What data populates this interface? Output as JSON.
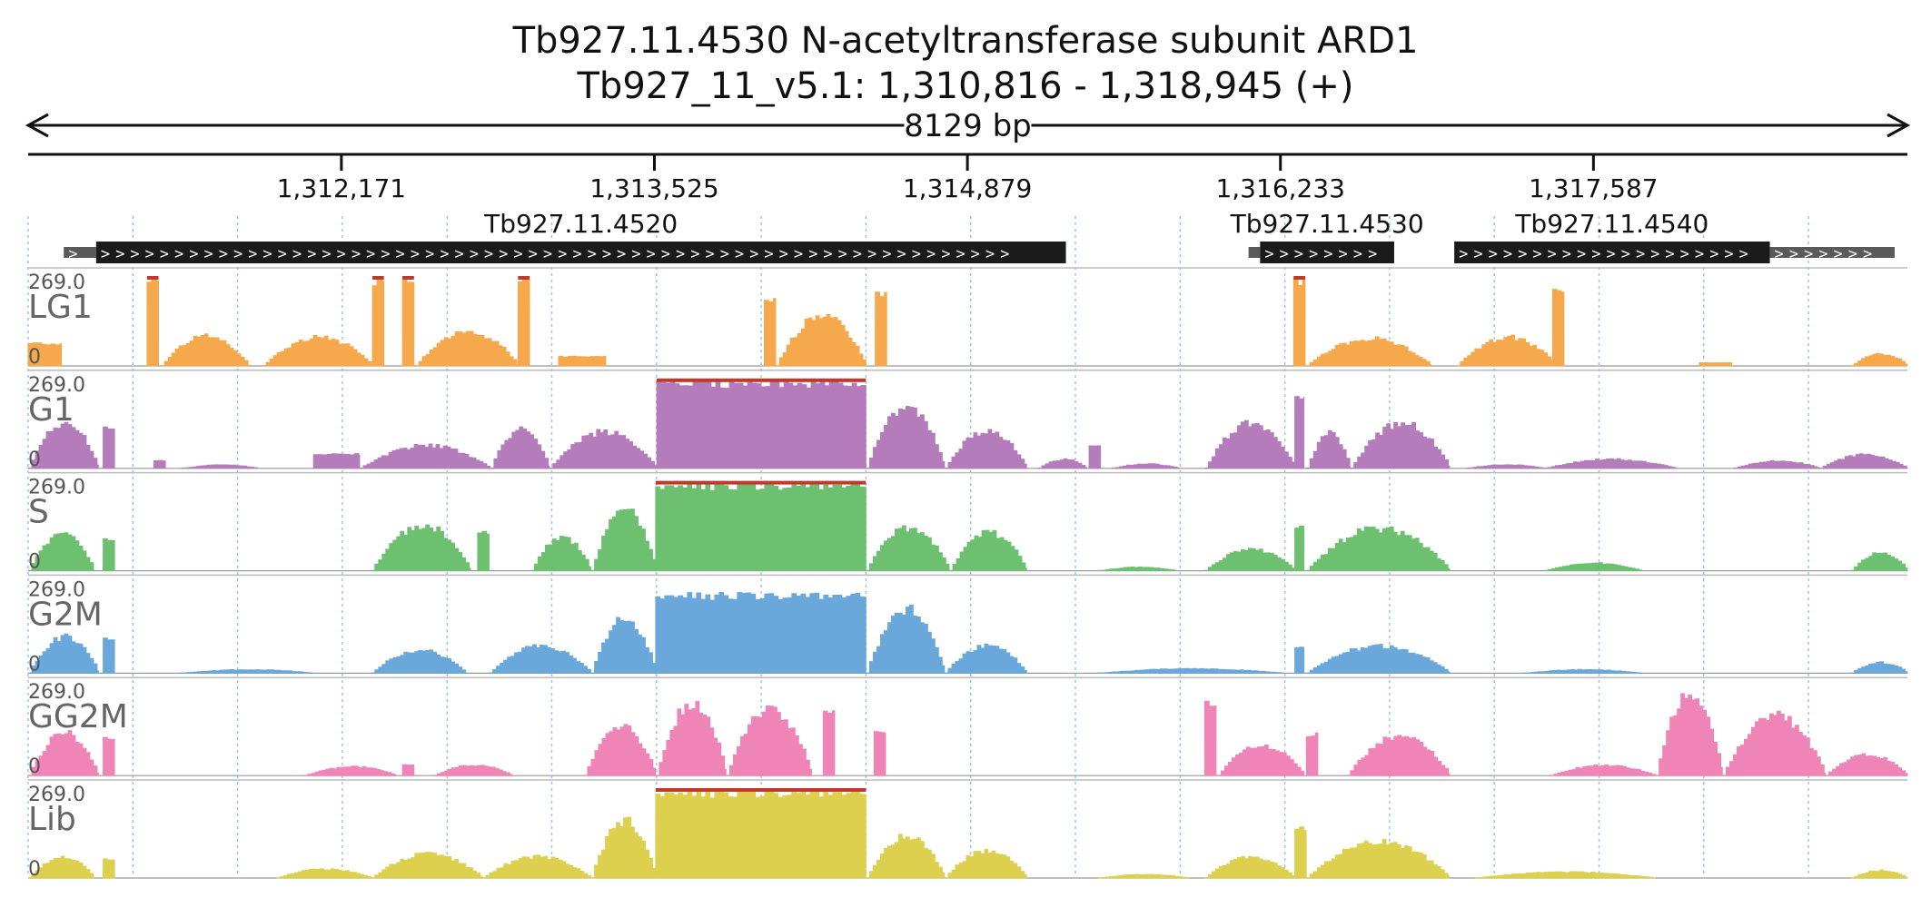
{
  "header": {
    "title_line1": "Tb927.11.4530  N-acetyltransferase subunit ARD1",
    "title_line2": "Tb927_11_v5.1: 1,310,816 - 1,318,945 (+)"
  },
  "region": {
    "chromosome": "Tb927_11_v5.1",
    "start": 1310816,
    "end": 1318945,
    "strand": "+",
    "length_label": "8129 bp",
    "ticks": [
      {
        "pos": 1312171,
        "label": "1,312,171"
      },
      {
        "pos": 1313525,
        "label": "1,313,525"
      },
      {
        "pos": 1314879,
        "label": "1,314,879"
      },
      {
        "pos": 1316233,
        "label": "1,316,233"
      },
      {
        "pos": 1317587,
        "label": "1,317,587"
      }
    ]
  },
  "genes": [
    {
      "name": "Tb927.11.4520",
      "utr5": [
        1310970,
        1311110
      ],
      "cds": [
        1311110,
        1315305
      ],
      "utr3": null
    },
    {
      "name": "Tb927.11.4530",
      "utr5": [
        1316095,
        1316145
      ],
      "cds": [
        1316145,
        1316725
      ],
      "utr3": null
    },
    {
      "name": "Tb927.11.4540",
      "utr5": null,
      "cds": [
        1316985,
        1318350
      ],
      "utr3": [
        1318350,
        1318890
      ]
    }
  ],
  "colors": {
    "LG1": "#f5a84c",
    "G1": "#b47cba",
    "S": "#6cc070",
    "G2M": "#6aa8dc",
    "GG2M": "#ef85b6",
    "Lib": "#dcd04e",
    "clip": "#c0392b",
    "grid": "#9ec5e8",
    "gene": "#1b1b1b",
    "utr": "#5a5a5a"
  },
  "chart_data": {
    "type": "area",
    "x_units": "genomic position (bp)",
    "xlim": [
      1310816,
      1318945
    ],
    "ylim": [
      0,
      269.0
    ],
    "y_tick_labels": [
      "0",
      "269.0"
    ],
    "grid": true,
    "series": [
      {
        "name": "LG1",
        "regions": [
          {
            "range": [
              1310816,
              1310960
            ],
            "peak": 120,
            "plateau": 70
          },
          {
            "range": [
              1311330,
              1311380
            ],
            "peak": 269,
            "plateau": 269
          },
          {
            "range": [
              1311390,
              1311770
            ],
            "peak": 100
          },
          {
            "range": [
              1311830,
              1312305
            ],
            "peak": 95
          },
          {
            "range": [
              1312305,
              1312355
            ],
            "peak": 269,
            "plateau": 269
          },
          {
            "range": [
              1312435,
              1312485
            ],
            "peak": 269,
            "plateau": 269
          },
          {
            "range": [
              1312490,
              1312935
            ],
            "peak": 115
          },
          {
            "range": [
              1312935,
              1312985
            ],
            "peak": 269,
            "plateau": 269
          },
          {
            "range": [
              1313110,
              1313315
            ],
            "peak": 35,
            "plateau": 30
          },
          {
            "range": [
              1314000,
              1314050
            ],
            "peak": 210,
            "plateau": 210
          },
          {
            "range": [
              1314050,
              1314440
            ],
            "peak": 165
          },
          {
            "range": [
              1314480,
              1314530
            ],
            "peak": 225,
            "plateau": 225
          },
          {
            "range": [
              1316290,
              1316340
            ],
            "peak": 269,
            "plateau": 269
          },
          {
            "range": [
              1316345,
              1316885
            ],
            "peak": 90
          },
          {
            "range": [
              1316995,
              1317425
            ],
            "peak": 95
          },
          {
            "range": [
              1317410,
              1317460
            ],
            "peak": 240,
            "plateau": 240
          },
          {
            "range": [
              1318045,
              1318185
            ],
            "peak": 12,
            "plateau": 10
          },
          {
            "range": [
              1318700,
              1318945
            ],
            "peak": 40
          }
        ]
      },
      {
        "name": "G1",
        "regions": [
          {
            "range": [
              1310816,
              1311120
            ],
            "peak": 150
          },
          {
            "range": [
              1311140,
              1311190
            ],
            "peak": 130,
            "plateau": 130
          },
          {
            "range": [
              1311360,
              1311410
            ],
            "peak": 25,
            "plateau": 25
          },
          {
            "range": [
              1311480,
              1311810
            ],
            "peak": 12
          },
          {
            "range": [
              1312050,
              1312250
            ],
            "peak": 55,
            "plateau": 45
          },
          {
            "range": [
              1312250,
              1312815
            ],
            "peak": 75
          },
          {
            "range": [
              1312815,
              1313070
            ],
            "peak": 130
          },
          {
            "range": [
              1313070,
              1313535
            ],
            "peak": 120
          },
          {
            "range": [
              1313535,
              1314440
            ],
            "peak": 269,
            "plateau": 269
          },
          {
            "range": [
              1314440,
              1314780
            ],
            "peak": 200
          },
          {
            "range": [
              1314780,
              1315135
            ],
            "peak": 125
          },
          {
            "range": [
              1315185,
              1315395
            ],
            "peak": 30
          },
          {
            "range": [
              1315405,
              1315455
            ],
            "peak": 70,
            "plateau": 70
          },
          {
            "range": [
              1315505,
              1315795
            ],
            "peak": 15
          },
          {
            "range": [
              1315905,
              1316295
            ],
            "peak": 150
          },
          {
            "range": [
              1316295,
              1316335
            ],
            "peak": 220,
            "plateau": 220
          },
          {
            "range": [
              1316345,
              1316535
            ],
            "peak": 115
          },
          {
            "range": [
              1316535,
              1316965
            ],
            "peak": 150
          },
          {
            "range": [
              1317035,
              1317375
            ],
            "peak": 12
          },
          {
            "range": [
              1317375,
              1317945
            ],
            "peak": 30
          },
          {
            "range": [
              1318195,
              1318565
            ],
            "peak": 25
          },
          {
            "range": [
              1318565,
              1318945
            ],
            "peak": 45
          }
        ]
      },
      {
        "name": "S",
        "regions": [
          {
            "range": [
              1310816,
              1311100
            ],
            "peak": 120
          },
          {
            "range": [
              1311140,
              1311190
            ],
            "peak": 100,
            "plateau": 100
          },
          {
            "range": [
              1312300,
              1312730
            ],
            "peak": 150
          },
          {
            "range": [
              1312760,
              1312810
            ],
            "peak": 120,
            "plateau": 120
          },
          {
            "range": [
              1312990,
              1313250
            ],
            "peak": 110
          },
          {
            "range": [
              1313250,
              1313530
            ],
            "peak": 200
          },
          {
            "range": [
              1313530,
              1314440
            ],
            "peak": 269,
            "plateau": 269
          },
          {
            "range": [
              1314440,
              1314800
            ],
            "peak": 140
          },
          {
            "range": [
              1314800,
              1315135
            ],
            "peak": 125
          },
          {
            "range": [
              1315445,
              1315785
            ],
            "peak": 12
          },
          {
            "range": [
              1315905,
              1316295
            ],
            "peak": 70
          },
          {
            "range": [
              1316295,
              1316335
            ],
            "peak": 140,
            "plateau": 140
          },
          {
            "range": [
              1316345,
              1316965
            ],
            "peak": 140
          },
          {
            "range": [
              1317375,
              1317795
            ],
            "peak": 25
          },
          {
            "range": [
              1318700,
              1318945
            ],
            "peak": 60
          }
        ]
      },
      {
        "name": "G2M",
        "regions": [
          {
            "range": [
              1310816,
              1311120
            ],
            "peak": 120
          },
          {
            "range": [
              1311140,
              1311190
            ],
            "peak": 110,
            "plateau": 110
          },
          {
            "range": [
              1311470,
              1312050
            ],
            "peak": 12
          },
          {
            "range": [
              1312300,
              1312710
            ],
            "peak": 75
          },
          {
            "range": [
              1312810,
              1313250
            ],
            "peak": 90
          },
          {
            "range": [
              1313250,
              1313530
            ],
            "peak": 180
          },
          {
            "range": [
              1313530,
              1314440
            ],
            "peak": 269,
            "plateau": 245
          },
          {
            "range": [
              1314440,
              1314780
            ],
            "peak": 210
          },
          {
            "range": [
              1314780,
              1315135
            ],
            "peak": 90
          },
          {
            "range": [
              1315445,
              1316245
            ],
            "peak": 15
          },
          {
            "range": [
              1316295,
              1316335
            ],
            "peak": 80,
            "plateau": 80
          },
          {
            "range": [
              1316345,
              1316965
            ],
            "peak": 90
          },
          {
            "range": [
              1317285,
              1317795
            ],
            "peak": 12
          },
          {
            "range": [
              1318700,
              1318945
            ],
            "peak": 35
          }
        ]
      },
      {
        "name": "GG2M",
        "regions": [
          {
            "range": [
              1310816,
              1311120
            ],
            "peak": 140
          },
          {
            "range": [
              1311140,
              1311190
            ],
            "peak": 120,
            "plateau": 120
          },
          {
            "range": [
              1312010,
              1312410
            ],
            "peak": 30
          },
          {
            "range": [
              1312435,
              1312485
            ],
            "peak": 35,
            "plateau": 35
          },
          {
            "range": [
              1312570,
              1312910
            ],
            "peak": 35
          },
          {
            "range": [
              1313220,
              1313530
            ],
            "peak": 160
          },
          {
            "range": [
              1313530,
              1313835
            ],
            "peak": 240
          },
          {
            "range": [
              1313835,
              1314205
            ],
            "peak": 220
          },
          {
            "range": [
              1314255,
              1314305
            ],
            "peak": 200,
            "plateau": 200
          },
          {
            "range": [
              1314475,
              1314525
            ],
            "peak": 140,
            "plateau": 140
          },
          {
            "range": [
              1315905,
              1315955
            ],
            "peak": 230,
            "plateau": 230
          },
          {
            "range": [
              1315960,
              1316335
            ],
            "peak": 100
          },
          {
            "range": [
              1316345,
              1316395
            ],
            "peak": 130,
            "plateau": 130
          },
          {
            "range": [
              1316520,
              1316965
            ],
            "peak": 130
          },
          {
            "range": [
              1317400,
              1317855
            ],
            "peak": 35
          },
          {
            "range": [
              1317855,
              1318145
            ],
            "peak": 269
          },
          {
            "range": [
              1318145,
              1318590
            ],
            "peak": 200
          },
          {
            "range": [
              1318590,
              1318945
            ],
            "peak": 70
          }
        ]
      },
      {
        "name": "Lib",
        "regions": [
          {
            "range": [
              1310816,
              1311100
            ],
            "peak": 70
          },
          {
            "range": [
              1311140,
              1311190
            ],
            "peak": 60,
            "plateau": 60
          },
          {
            "range": [
              1311890,
              1312300
            ],
            "peak": 30
          },
          {
            "range": [
              1312300,
              1312780
            ],
            "peak": 80
          },
          {
            "range": [
              1312780,
              1313250
            ],
            "peak": 70
          },
          {
            "range": [
              1313250,
              1313530
            ],
            "peak": 190
          },
          {
            "range": [
              1313530,
              1314440
            ],
            "peak": 269,
            "plateau": 269
          },
          {
            "range": [
              1314440,
              1314780
            ],
            "peak": 140
          },
          {
            "range": [
              1314780,
              1315135
            ],
            "peak": 90
          },
          {
            "range": [
              1315445,
              1315835
            ],
            "peak": 12
          },
          {
            "range": [
              1315905,
              1316295
            ],
            "peak": 70
          },
          {
            "range": [
              1316295,
              1316345
            ],
            "peak": 160,
            "plateau": 160
          },
          {
            "range": [
              1316345,
              1316965
            ],
            "peak": 120
          },
          {
            "range": [
              1317075,
              1317855
            ],
            "peak": 20
          },
          {
            "range": [
              1318700,
              1318945
            ],
            "peak": 25
          }
        ]
      }
    ]
  }
}
